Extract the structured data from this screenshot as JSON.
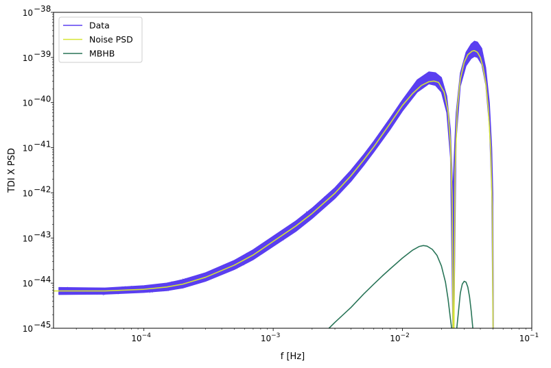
{
  "chart_data": {
    "type": "line",
    "xlabel": "f [Hz]",
    "ylabel": "TDI X PSD",
    "xscale": "log",
    "yscale": "log",
    "xlim": [
      2e-05,
      0.1
    ],
    "ylim": [
      1e-45,
      1e-38
    ],
    "grid": false,
    "legend_position": "top-left",
    "x_ticks": [
      {
        "value": 0.0001,
        "base": "10",
        "exp": "−4"
      },
      {
        "value": 0.001,
        "base": "10",
        "exp": "−3"
      },
      {
        "value": 0.01,
        "base": "10",
        "exp": "−2"
      },
      {
        "value": 0.1,
        "base": "10",
        "exp": "−1"
      }
    ],
    "y_ticks": [
      {
        "value": 1e-45,
        "base": "10",
        "exp": "−45"
      },
      {
        "value": 1e-44,
        "base": "10",
        "exp": "−44"
      },
      {
        "value": 1e-43,
        "base": "10",
        "exp": "−43"
      },
      {
        "value": 1e-42,
        "base": "10",
        "exp": "−42"
      },
      {
        "value": 1e-41,
        "base": "10",
        "exp": "−41"
      },
      {
        "value": 1e-40,
        "base": "10",
        "exp": "−40"
      },
      {
        "value": 1e-39,
        "base": "10",
        "exp": "−39"
      },
      {
        "value": 1e-38,
        "base": "10",
        "exp": "−38"
      }
    ],
    "series": [
      {
        "name": "Data",
        "color": "#5a3ff0",
        "band_upper": [
          [
            2.2e-05,
            8e-45
          ],
          [
            5e-05,
            7.8e-45
          ],
          [
            0.0001,
            8.8e-45
          ],
          [
            0.00015,
            1e-44
          ],
          [
            0.0002,
            1.2e-44
          ],
          [
            0.0003,
            1.7e-44
          ],
          [
            0.0005,
            3.2e-44
          ],
          [
            0.0007,
            5.5e-44
          ],
          [
            0.001,
            1.1e-43
          ],
          [
            0.0015,
            2.4e-43
          ],
          [
            0.002,
            4.6e-43
          ],
          [
            0.003,
            1.3e-42
          ],
          [
            0.004,
            3.2e-42
          ],
          [
            0.005,
            7e-42
          ],
          [
            0.006,
            1.4e-41
          ],
          [
            0.008,
            4.5e-41
          ],
          [
            0.01,
            1.15e-40
          ],
          [
            0.013,
            3.2e-40
          ],
          [
            0.016,
            4.8e-40
          ],
          [
            0.018,
            4.6e-40
          ],
          [
            0.02,
            3.6e-40
          ],
          [
            0.022,
            1.4e-40
          ],
          [
            0.0235,
            2.5e-41
          ],
          [
            0.0245,
            1e-42
          ],
          [
            0.025,
            5e-42
          ],
          [
            0.026,
            6e-41
          ],
          [
            0.028,
            4.5e-40
          ],
          [
            0.031,
            1.3e-39
          ],
          [
            0.034,
            2e-39
          ],
          [
            0.036,
            2.3e-39
          ],
          [
            0.038,
            2.2e-39
          ],
          [
            0.041,
            1.6e-39
          ],
          [
            0.044,
            6e-40
          ],
          [
            0.047,
            1e-40
          ],
          [
            0.049,
            1e-41
          ],
          [
            0.05,
            1e-42
          ],
          [
            0.0505,
            1e-45
          ]
        ],
        "band_lower": [
          [
            2.2e-05,
            5.6e-45
          ],
          [
            5e-05,
            5.7e-45
          ],
          [
            0.0001,
            6.2e-45
          ],
          [
            0.00015,
            6.8e-45
          ],
          [
            0.0002,
            7.8e-45
          ],
          [
            0.0003,
            1.1e-44
          ],
          [
            0.0005,
            2e-44
          ],
          [
            0.0007,
            3.3e-44
          ],
          [
            0.001,
            6.5e-44
          ],
          [
            0.0015,
            1.4e-43
          ],
          [
            0.002,
            2.7e-43
          ],
          [
            0.003,
            7.5e-43
          ],
          [
            0.004,
            1.8e-42
          ],
          [
            0.005,
            4e-42
          ],
          [
            0.006,
            8e-42
          ],
          [
            0.008,
            2.5e-41
          ],
          [
            0.01,
            6.5e-41
          ],
          [
            0.013,
            1.7e-40
          ],
          [
            0.016,
            2.6e-40
          ],
          [
            0.018,
            2.4e-40
          ],
          [
            0.02,
            1.7e-40
          ],
          [
            0.022,
            6e-41
          ],
          [
            0.0235,
            6e-42
          ],
          [
            0.0245,
            1e-45
          ],
          [
            0.025,
            1e-45
          ],
          [
            0.026,
            1.5e-41
          ],
          [
            0.028,
            2.3e-40
          ],
          [
            0.031,
            6.5e-40
          ],
          [
            0.034,
            9.5e-40
          ],
          [
            0.036,
            1.05e-39
          ],
          [
            0.038,
            1e-39
          ],
          [
            0.041,
            7e-40
          ],
          [
            0.044,
            2.5e-40
          ],
          [
            0.047,
            3e-41
          ],
          [
            0.049,
            1e-42
          ],
          [
            0.05,
            1e-45
          ],
          [
            0.0505,
            1e-45
          ]
        ]
      },
      {
        "name": "Noise PSD",
        "color": "#d6e632",
        "points": [
          [
            2e-05,
            6.7e-45
          ],
          [
            5e-05,
            6.7e-45
          ],
          [
            0.0001,
            7.3e-45
          ],
          [
            0.00015,
            8.2e-45
          ],
          [
            0.0002,
            9.5e-45
          ],
          [
            0.0003,
            1.35e-44
          ],
          [
            0.0005,
            2.5e-44
          ],
          [
            0.0007,
            4.2e-44
          ],
          [
            0.001,
            8.4e-44
          ],
          [
            0.0015,
            1.85e-43
          ],
          [
            0.002,
            3.5e-43
          ],
          [
            0.003,
            9.8e-43
          ],
          [
            0.004,
            2.4e-42
          ],
          [
            0.005,
            5.3e-42
          ],
          [
            0.006,
            1.05e-41
          ],
          [
            0.008,
            3.4e-41
          ],
          [
            0.01,
            8.7e-41
          ],
          [
            0.012,
            1.6e-40
          ],
          [
            0.014,
            2.4e-40
          ],
          [
            0.016,
            2.9e-40
          ],
          [
            0.0175,
            3e-40
          ],
          [
            0.019,
            2.8e-40
          ],
          [
            0.021,
            1.7e-40
          ],
          [
            0.0225,
            6.5e-41
          ],
          [
            0.0235,
            1.2e-41
          ],
          [
            0.0242,
            8e-43
          ],
          [
            0.0246,
            1e-45
          ],
          [
            0.025,
            1e-45
          ],
          [
            0.0255,
            3e-42
          ],
          [
            0.0265,
            7e-41
          ],
          [
            0.028,
            3.3e-40
          ],
          [
            0.03,
            7.8e-40
          ],
          [
            0.032,
            1.15e-39
          ],
          [
            0.0345,
            1.38e-39
          ],
          [
            0.036,
            1.42e-39
          ],
          [
            0.038,
            1.3e-39
          ],
          [
            0.04,
            1e-39
          ],
          [
            0.042,
            6e-40
          ],
          [
            0.044,
            2.8e-40
          ],
          [
            0.046,
            8e-41
          ],
          [
            0.048,
            1e-41
          ],
          [
            0.0495,
            5e-43
          ],
          [
            0.0502,
            1e-45
          ]
        ]
      },
      {
        "name": "MBHB",
        "color": "#287457",
        "points": [
          [
            0.0027,
            1e-45
          ],
          [
            0.003,
            1.35e-45
          ],
          [
            0.004,
            2.9e-45
          ],
          [
            0.005,
            5.7e-45
          ],
          [
            0.006,
            9.5e-45
          ],
          [
            0.007,
            1.45e-44
          ],
          [
            0.008,
            2.05e-44
          ],
          [
            0.01,
            3.6e-44
          ],
          [
            0.012,
            5.4e-44
          ],
          [
            0.0135,
            6.5e-44
          ],
          [
            0.0145,
            6.8e-44
          ],
          [
            0.0155,
            6.6e-44
          ],
          [
            0.017,
            5.6e-44
          ],
          [
            0.0185,
            4.1e-44
          ],
          [
            0.02,
            2.4e-44
          ],
          [
            0.0215,
            1.05e-44
          ],
          [
            0.0225,
            4.5e-45
          ],
          [
            0.0235,
            1.6e-45
          ],
          [
            0.024,
            1e-45
          ],
          null,
          [
            0.0263,
            1e-45
          ],
          [
            0.027,
            2.1e-45
          ],
          [
            0.028,
            6e-45
          ],
          [
            0.029,
            9.5e-45
          ],
          [
            0.03,
            1.1e-44
          ],
          [
            0.031,
            1.05e-44
          ],
          [
            0.032,
            8.2e-45
          ],
          [
            0.033,
            5e-45
          ],
          [
            0.034,
            2.4e-45
          ],
          [
            0.035,
            1e-45
          ]
        ]
      }
    ]
  }
}
